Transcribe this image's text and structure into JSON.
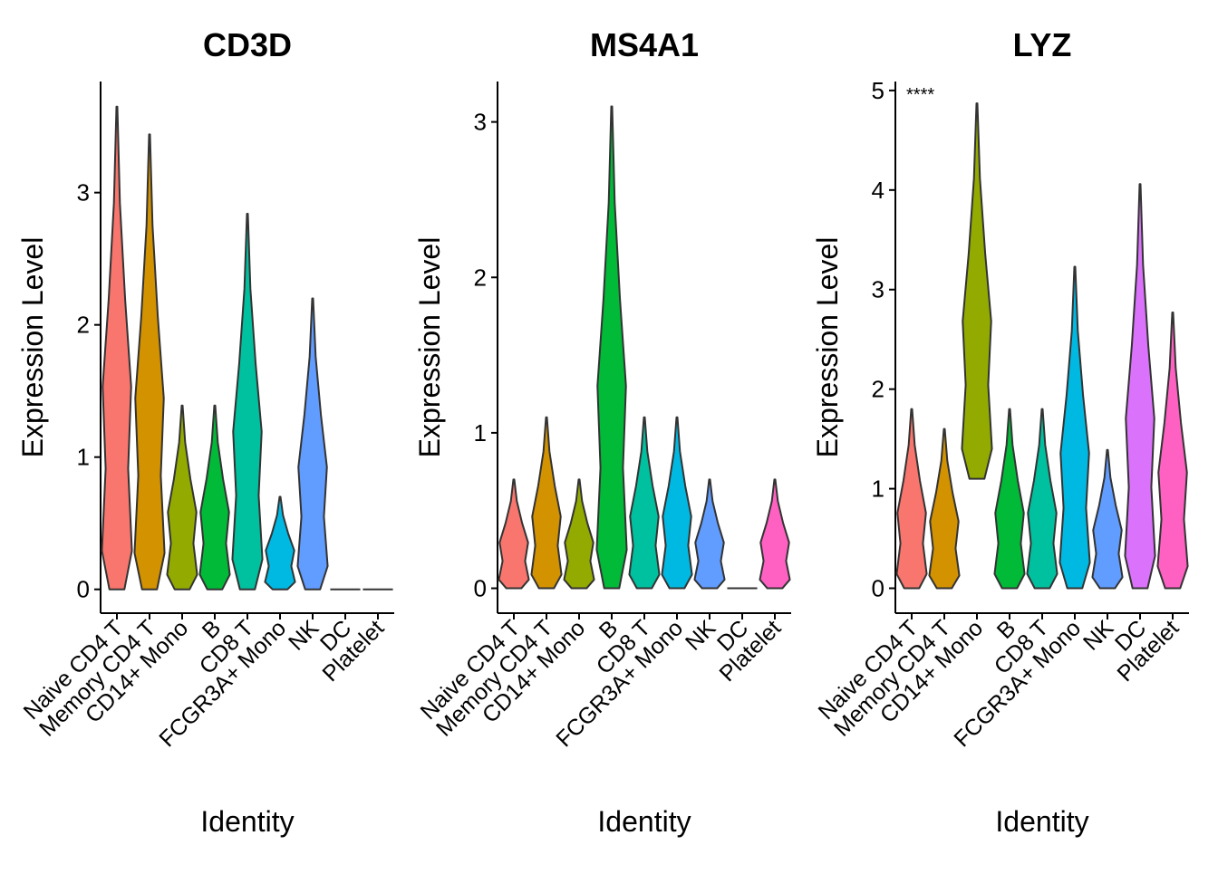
{
  "chart_data": [
    {
      "type": "violin",
      "title": "CD3D",
      "xlabel": "Identity",
      "ylabel": "Expression Level",
      "categories": [
        "Naive CD4 T",
        "Memory CD4 T",
        "CD14+ Mono",
        "B",
        "CD8 T",
        "FCGR3A+ Mono",
        "NK",
        "DC",
        "Platelet"
      ],
      "colors": [
        "#F8766D",
        "#D39200",
        "#93AA00",
        "#00BA38",
        "#00C19F",
        "#00B9E3",
        "#619CFF",
        "#DB72FB",
        "#FF61C3"
      ],
      "mins": [
        0,
        0,
        0,
        0,
        0,
        0,
        0,
        0,
        0
      ],
      "maxs": [
        3.65,
        3.44,
        1.39,
        1.39,
        2.84,
        0.7,
        2.2,
        0,
        0
      ],
      "ylim": [
        -0.18,
        3.84
      ],
      "yticks": [
        0,
        1,
        2,
        3
      ]
    },
    {
      "type": "violin",
      "title": "MS4A1",
      "xlabel": "Identity",
      "ylabel": "Expression Level",
      "categories": [
        "Naive CD4 T",
        "Memory CD4 T",
        "CD14+ Mono",
        "B",
        "CD8 T",
        "FCGR3A+ Mono",
        "NK",
        "DC",
        "Platelet"
      ],
      "colors": [
        "#F8766D",
        "#D39200",
        "#93AA00",
        "#00BA38",
        "#00C19F",
        "#00B9E3",
        "#619CFF",
        "#DB72FB",
        "#FF61C3"
      ],
      "mins": [
        0,
        0,
        0,
        0,
        0,
        0,
        0,
        0,
        0
      ],
      "maxs": [
        0.7,
        1.1,
        0.7,
        3.1,
        1.1,
        1.1,
        0.7,
        0,
        0.7
      ],
      "ylim": [
        -0.16,
        3.26
      ],
      "yticks": [
        0,
        1,
        2,
        3
      ]
    },
    {
      "type": "violin",
      "title": "LYZ",
      "xlabel": "Identity",
      "ylabel": "Expression Level",
      "annotation": "****",
      "categories": [
        "Naive CD4 T",
        "Memory CD4 T",
        "CD14+ Mono",
        "B",
        "CD8 T",
        "FCGR3A+ Mono",
        "NK",
        "DC",
        "Platelet"
      ],
      "colors": [
        "#F8766D",
        "#D39200",
        "#93AA00",
        "#00BA38",
        "#00C19F",
        "#00B9E3",
        "#619CFF",
        "#DB72FB",
        "#FF61C3"
      ],
      "mins": [
        0,
        0,
        1.1,
        0,
        0,
        0,
        0,
        0,
        0
      ],
      "maxs": [
        1.8,
        1.6,
        4.87,
        1.8,
        1.8,
        3.23,
        1.39,
        4.06,
        2.77
      ],
      "ylim": [
        -0.25,
        5.09
      ],
      "yticks": [
        0,
        1,
        2,
        3,
        4,
        5
      ]
    }
  ]
}
